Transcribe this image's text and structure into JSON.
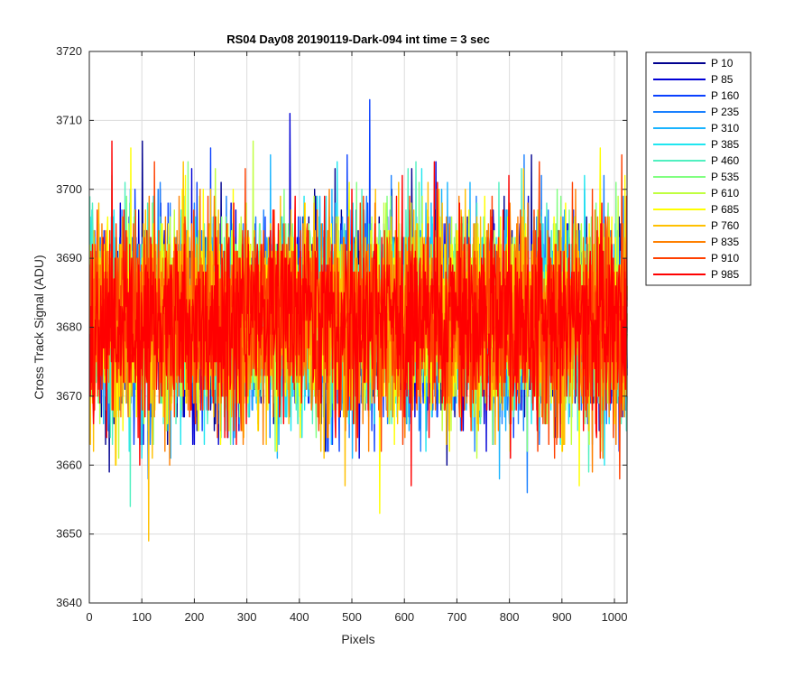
{
  "chart_data": {
    "type": "line",
    "title": "RS04 Day08 20190119-Dark-094 int time = 3 sec",
    "xlabel": "Pixels",
    "ylabel": "Cross Track Signal (ADU)",
    "xlim": [
      0,
      1024
    ],
    "ylim": [
      3640,
      3720
    ],
    "xticks": [
      0,
      100,
      200,
      300,
      400,
      500,
      600,
      700,
      800,
      900,
      1000
    ],
    "yticks": [
      3640,
      3650,
      3660,
      3670,
      3680,
      3690,
      3700,
      3710,
      3720
    ],
    "grid": true,
    "legend_position": "outside-top-right",
    "noise_model": {
      "mean": 3681,
      "sd": 7,
      "min": 3649,
      "max": 3713
    },
    "series": [
      {
        "name": "P 10",
        "color": "#00008f"
      },
      {
        "name": "P 85",
        "color": "#0000d6"
      },
      {
        "name": "P 160",
        "color": "#0a40ff"
      },
      {
        "name": "P 235",
        "color": "#1a80ff"
      },
      {
        "name": "P 310",
        "color": "#1ab4ff"
      },
      {
        "name": "P 385",
        "color": "#20e6f0"
      },
      {
        "name": "P 460",
        "color": "#50f0c0"
      },
      {
        "name": "P 535",
        "color": "#80ff80"
      },
      {
        "name": "P 610",
        "color": "#c0ff40"
      },
      {
        "name": "P 685",
        "color": "#ffff00"
      },
      {
        "name": "P 760",
        "color": "#ffc000"
      },
      {
        "name": "P 835",
        "color": "#ff8000"
      },
      {
        "name": "P 910",
        "color": "#ff4000"
      },
      {
        "name": "P 985",
        "color": "#ff0000"
      }
    ],
    "annotated_extremes": [
      {
        "series": "P 85",
        "x": 381,
        "y": 3711
      },
      {
        "series": "P 160",
        "x": 533,
        "y": 3713
      },
      {
        "series": "P 985",
        "x": 42,
        "y": 3707
      },
      {
        "series": "P 760",
        "x": 112,
        "y": 3649
      },
      {
        "series": "P 685",
        "x": 552,
        "y": 3653
      },
      {
        "series": "P 460",
        "x": 77,
        "y": 3654
      }
    ]
  }
}
